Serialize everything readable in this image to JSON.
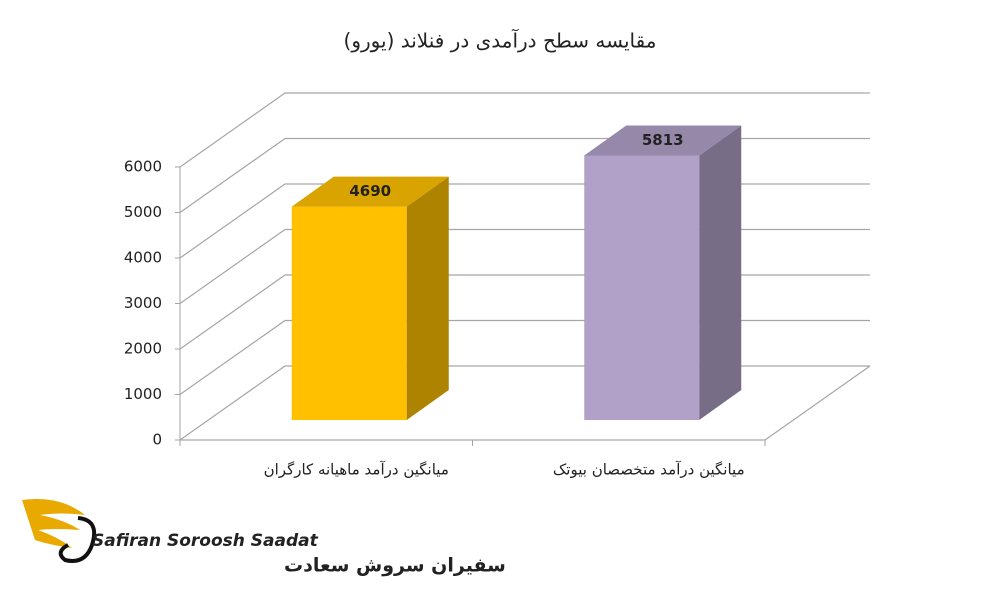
{
  "chart_data": {
    "type": "bar3d",
    "title": "مقایسه سطح درآمدی در فنلاند (یورو)",
    "categories": [
      "میانگین درآمد ماهیانه کارگران",
      "میانگین درآمد متخصصان بیوتک"
    ],
    "values": [
      4690,
      5813
    ],
    "colors": [
      "#FFC000",
      "#B1A0C7"
    ],
    "ylim": [
      0,
      6000
    ],
    "yticks": [
      0,
      1000,
      2000,
      3000,
      4000,
      5000,
      6000
    ],
    "grid": true
  },
  "logo": {
    "name_en": "Safiran Soroosh Saadat",
    "name_fa": "سفیران سروش سعادت"
  }
}
